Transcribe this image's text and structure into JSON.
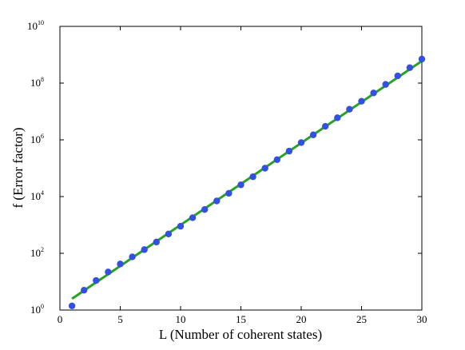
{
  "chart_data": {
    "type": "scatter",
    "title": "",
    "xlabel": "L (Number of coherent states)",
    "ylabel": "f (Error factor)",
    "xlim": [
      0,
      30
    ],
    "ylim_exponent": [
      0,
      10
    ],
    "y_scale": "log",
    "grid": false,
    "legend": "none",
    "x_ticks": [
      "0",
      "5",
      "10",
      "15",
      "20",
      "25",
      "30"
    ],
    "y_ticks": [
      {
        "base": "10",
        "exp": "0"
      },
      {
        "base": "10",
        "exp": "2"
      },
      {
        "base": "10",
        "exp": "4"
      },
      {
        "base": "10",
        "exp": "6"
      },
      {
        "base": "10",
        "exp": "8"
      },
      {
        "base": "10",
        "exp": "10"
      }
    ],
    "series": [
      {
        "kind": "points",
        "color": "#3350e0",
        "x": [
          1,
          2,
          3,
          4,
          5,
          6,
          7,
          8,
          9,
          10,
          11,
          12,
          13,
          14,
          15,
          16,
          17,
          18,
          19,
          20,
          21,
          22,
          23,
          24,
          25,
          26,
          27,
          28,
          29,
          30
        ],
        "y": [
          1.4,
          5,
          11,
          22,
          42,
          75,
          135,
          250,
          480,
          900,
          1800,
          3500,
          7000,
          13000,
          26000,
          50000,
          100000,
          200000,
          400000,
          800000,
          1500000,
          3000000,
          6000000,
          12000000,
          23000000,
          45000000,
          90000000,
          180000000,
          350000000,
          700000000
        ]
      },
      {
        "kind": "line",
        "color": "#27a322",
        "x": [
          1,
          30
        ],
        "y": [
          2.5,
          600000000
        ]
      }
    ]
  }
}
